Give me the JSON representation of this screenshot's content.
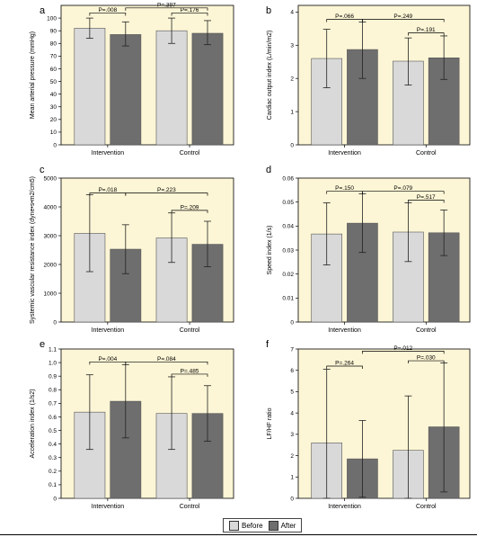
{
  "chart_data": [
    {
      "type": "bar",
      "panel": "a",
      "ylabel": "Mean arterial pressure (mmHg)",
      "categories": [
        "Intervention",
        "Control"
      ],
      "ylim": [
        0,
        110
      ],
      "yticks": [
        0,
        10,
        20,
        30,
        40,
        50,
        60,
        70,
        80,
        90,
        100
      ],
      "series": [
        {
          "name": "Before",
          "values": [
            92,
            90
          ],
          "error_low": [
            84,
            80
          ],
          "error_high": [
            100,
            100
          ]
        },
        {
          "name": "After",
          "values": [
            87,
            88
          ],
          "error_low": [
            78,
            79
          ],
          "error_high": [
            97,
            98
          ]
        }
      ],
      "annotations": [
        {
          "text": "P=.008",
          "from": [
            0,
            0
          ],
          "to": [
            0,
            1
          ],
          "y": 104
        },
        {
          "text": "P=.397",
          "from": [
            0,
            1
          ],
          "to": [
            1,
            1
          ],
          "y": 108
        },
        {
          "text": "P=.176",
          "from": [
            1,
            0
          ],
          "to": [
            1,
            1
          ],
          "y": 104
        }
      ]
    },
    {
      "type": "bar",
      "panel": "b",
      "ylabel": "Cardiac output index (L/min/m2)",
      "categories": [
        "Intervention",
        "Control"
      ],
      "ylim": [
        0,
        4.2
      ],
      "yticks": [
        0,
        1,
        2,
        3,
        4
      ],
      "series": [
        {
          "name": "Before",
          "values": [
            2.6,
            2.52
          ],
          "error_low": [
            1.72,
            1.8
          ],
          "error_high": [
            3.48,
            3.22
          ]
        },
        {
          "name": "After",
          "values": [
            2.87,
            2.62
          ],
          "error_low": [
            2.0,
            1.97
          ],
          "error_high": [
            3.7,
            3.28
          ]
        }
      ],
      "annotations": [
        {
          "text": "P=.066",
          "from": [
            0,
            0
          ],
          "to": [
            0,
            1
          ],
          "y": 3.78
        },
        {
          "text": "P=.249",
          "from": [
            0,
            1
          ],
          "to": [
            1,
            1
          ],
          "y": 3.78
        },
        {
          "text": "P=.191",
          "from": [
            1,
            0
          ],
          "to": [
            1,
            1
          ],
          "y": 3.37
        }
      ]
    },
    {
      "type": "bar",
      "panel": "c",
      "ylabel": "Systemic vascular resistance index (dyne•s•m2/cm5)",
      "categories": [
        "Intervention",
        "Control"
      ],
      "ylim": [
        0,
        5000
      ],
      "yticks": [
        0,
        1000,
        2000,
        3000,
        4000,
        5000
      ],
      "series": [
        {
          "name": "Before",
          "values": [
            3080,
            2920
          ],
          "error_low": [
            1750,
            2070
          ],
          "error_high": [
            4420,
            3790
          ]
        },
        {
          "name": "After",
          "values": [
            2530,
            2700
          ],
          "error_low": [
            1680,
            1920
          ],
          "error_high": [
            3380,
            3500
          ]
        }
      ],
      "annotations": [
        {
          "text": "P=.018",
          "from": [
            0,
            0
          ],
          "to": [
            0,
            1
          ],
          "y": 4480
        },
        {
          "text": "P=.223",
          "from": [
            0,
            1
          ],
          "to": [
            1,
            1
          ],
          "y": 4480
        },
        {
          "text": "P=.209",
          "from": [
            1,
            0
          ],
          "to": [
            1,
            1
          ],
          "y": 3880
        }
      ]
    },
    {
      "type": "bar",
      "panel": "d",
      "ylabel": "Speed index (1/s)",
      "categories": [
        "Intervention",
        "Control"
      ],
      "ylim": [
        0,
        0.06
      ],
      "yticks": [
        0,
        0.01,
        0.02,
        0.03,
        0.04,
        0.05,
        0.06
      ],
      "ytick_labels": [
        "0",
        "0.01",
        "0.02",
        "0.03",
        "0.04",
        "0.05",
        "0.06"
      ],
      "series": [
        {
          "name": "Before",
          "values": [
            0.0367,
            0.0375
          ],
          "error_low": [
            0.0238,
            0.0252
          ],
          "error_high": [
            0.0497,
            0.0497
          ]
        },
        {
          "name": "After",
          "values": [
            0.0412,
            0.0372
          ],
          "error_low": [
            0.029,
            0.0277
          ],
          "error_high": [
            0.0534,
            0.0467
          ]
        }
      ],
      "annotations": [
        {
          "text": "P=.150",
          "from": [
            0,
            0
          ],
          "to": [
            0,
            1
          ],
          "y": 0.0545
        },
        {
          "text": "P=.079",
          "from": [
            0,
            1
          ],
          "to": [
            1,
            1
          ],
          "y": 0.0545
        },
        {
          "text": "P=.517",
          "from": [
            1,
            0
          ],
          "to": [
            1,
            1
          ],
          "y": 0.0508
        }
      ]
    },
    {
      "type": "bar",
      "panel": "e",
      "ylabel": "Acceleration index (1/s2)",
      "categories": [
        "Intervention",
        "Control"
      ],
      "ylim": [
        0,
        1.1
      ],
      "yticks": [
        0,
        0.1,
        0.2,
        0.3,
        0.4,
        0.5,
        0.6,
        0.7,
        0.8,
        0.9,
        1.0,
        1.1
      ],
      "ytick_labels": [
        "0",
        "0.1",
        "0.2",
        "0.3",
        "0.4",
        "0.5",
        "0.6",
        "0.7",
        "0.8",
        "0.9",
        "1.0",
        "1.1"
      ],
      "series": [
        {
          "name": "Before",
          "values": [
            0.635,
            0.625
          ],
          "error_low": [
            0.36,
            0.36
          ],
          "error_high": [
            0.91,
            0.895
          ]
        },
        {
          "name": "After",
          "values": [
            0.715,
            0.625
          ],
          "error_low": [
            0.445,
            0.42
          ],
          "error_high": [
            0.985,
            0.83
          ]
        }
      ],
      "annotations": [
        {
          "text": "P=.004",
          "from": [
            0,
            0
          ],
          "to": [
            0,
            1
          ],
          "y": 1.005
        },
        {
          "text": "P=.084",
          "from": [
            0,
            1
          ],
          "to": [
            1,
            1
          ],
          "y": 1.005
        },
        {
          "text": "P=.485",
          "from": [
            1,
            0
          ],
          "to": [
            1,
            1
          ],
          "y": 0.915
        }
      ]
    },
    {
      "type": "bar",
      "panel": "f",
      "ylabel": "LF/HF ratio",
      "categories": [
        "Intervention",
        "Control"
      ],
      "ylim": [
        0,
        7
      ],
      "yticks": [
        0,
        1,
        2,
        3,
        4,
        5,
        6,
        7
      ],
      "series": [
        {
          "name": "Before",
          "values": [
            2.6,
            2.25
          ],
          "error_low": [
            0.0,
            0.0
          ],
          "error_high": [
            6.05,
            4.8
          ]
        },
        {
          "name": "After",
          "values": [
            1.85,
            3.35
          ],
          "error_low": [
            0.05,
            0.3
          ],
          "error_high": [
            3.65,
            6.35
          ]
        }
      ],
      "annotations": [
        {
          "text": "P=.264",
          "from": [
            0,
            0
          ],
          "to": [
            0,
            1
          ],
          "y": 6.2
        },
        {
          "text": "P=.012",
          "from": [
            0,
            1
          ],
          "to": [
            1,
            1
          ],
          "y": 6.9
        },
        {
          "text": "P=.030",
          "from": [
            1,
            0
          ],
          "to": [
            1,
            1
          ],
          "y": 6.45
        }
      ]
    }
  ],
  "legend": {
    "before_label": "Before",
    "after_label": "After"
  },
  "colors": {
    "before": "#d9d9d9",
    "after": "#6e6e6e",
    "plot_bg": "#fdf6d6"
  }
}
